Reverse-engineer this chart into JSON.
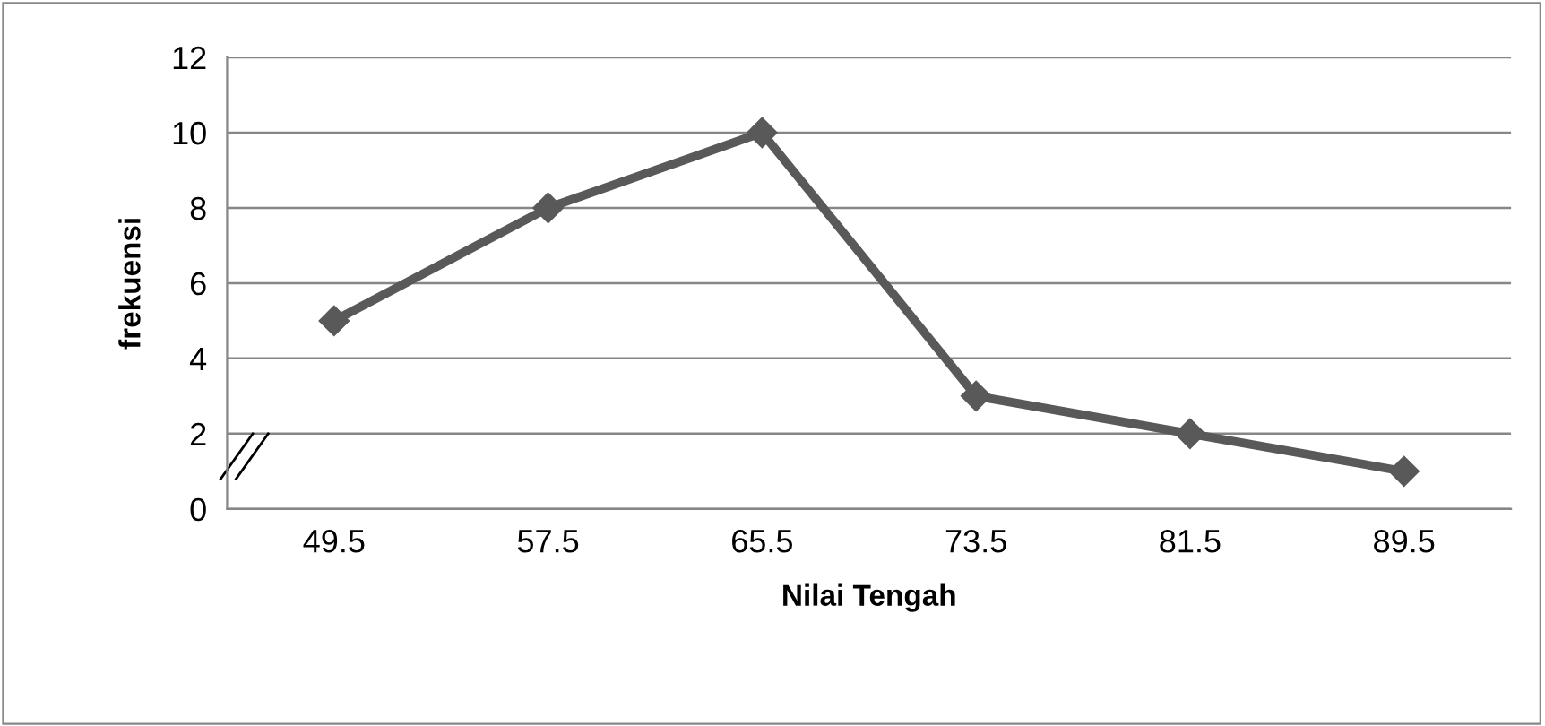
{
  "chart_data": {
    "type": "line",
    "xlabel": "Nilai Tengah",
    "ylabel": "frekuensi",
    "categories": [
      "49.5",
      "57.5",
      "65.5",
      "73.5",
      "81.5",
      "89.5"
    ],
    "series": [
      {
        "color": "#595959",
        "values": [
          5,
          8,
          10,
          3,
          2,
          1
        ]
      }
    ],
    "ylim": [
      0,
      12
    ],
    "yticks": [
      0,
      2,
      4,
      6,
      8,
      10,
      12
    ],
    "grid": "y",
    "marker": "diamond",
    "line_style": "solid",
    "legend": false
  }
}
